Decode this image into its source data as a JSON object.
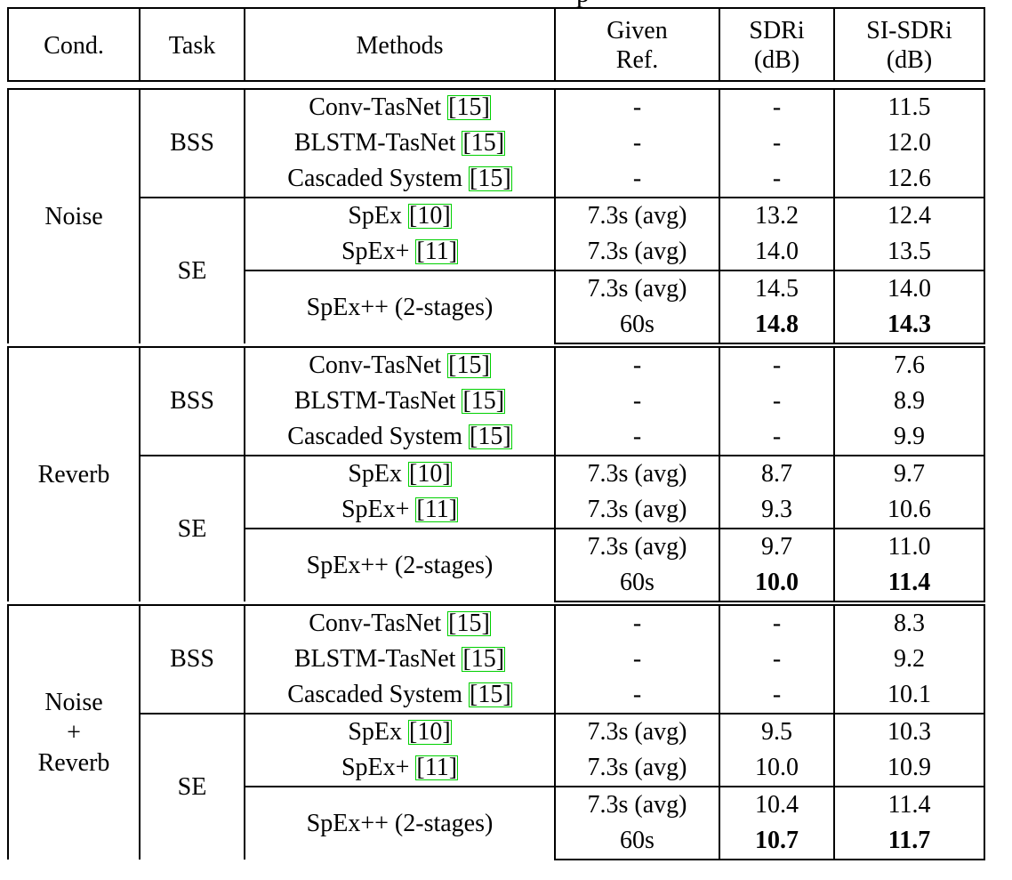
{
  "header": {
    "cond": "Cond.",
    "task": "Task",
    "methods": "Methods",
    "given_ref_line1": "Given",
    "given_ref_line2": "Ref.",
    "sdri_line1": "SDRi",
    "sdri_line2": "(dB)",
    "sisdri_line1": "SI-SDRi",
    "sisdri_line2": "(dB)"
  },
  "tasks": {
    "bss": "BSS",
    "se": "SE"
  },
  "methods": {
    "conv_tasnet": "Conv-TasNet",
    "blstm_tasnet": "BLSTM-TasNet",
    "cascaded": "Cascaded System",
    "spex": "SpEx",
    "spexplus": "SpEx+",
    "spexpp": "SpEx++ (2-stages)"
  },
  "refs": {
    "tasnet": "[15]",
    "spex": "[10]",
    "spexplus": "[11]"
  },
  "given_values": {
    "dash": "-",
    "avg": "7.3s (avg)",
    "sixty": "60s"
  },
  "blocks": [
    {
      "cond_line1": "Noise",
      "cond_line2": "",
      "cond_line3": "",
      "sdri": [
        "-",
        "-",
        "-",
        "13.2",
        "14.0",
        "14.5",
        "14.8"
      ],
      "sisdri": [
        "11.5",
        "12.0",
        "12.6",
        "12.4",
        "13.5",
        "14.0",
        "14.3"
      ]
    },
    {
      "cond_line1": "Reverb",
      "cond_line2": "",
      "cond_line3": "",
      "sdri": [
        "-",
        "-",
        "-",
        "8.7",
        "9.3",
        "9.7",
        "10.0"
      ],
      "sisdri": [
        "7.6",
        "8.9",
        "9.9",
        "9.7",
        "10.6",
        "11.0",
        "11.4"
      ]
    },
    {
      "cond_line1": "Noise",
      "cond_line2": "+",
      "cond_line3": "Reverb",
      "sdri": [
        "-",
        "-",
        "-",
        "9.5",
        "10.0",
        "10.4",
        "10.7"
      ],
      "sisdri": [
        "8.3",
        "9.2",
        "10.1",
        "10.3",
        "10.9",
        "11.4",
        "11.7"
      ]
    }
  ]
}
